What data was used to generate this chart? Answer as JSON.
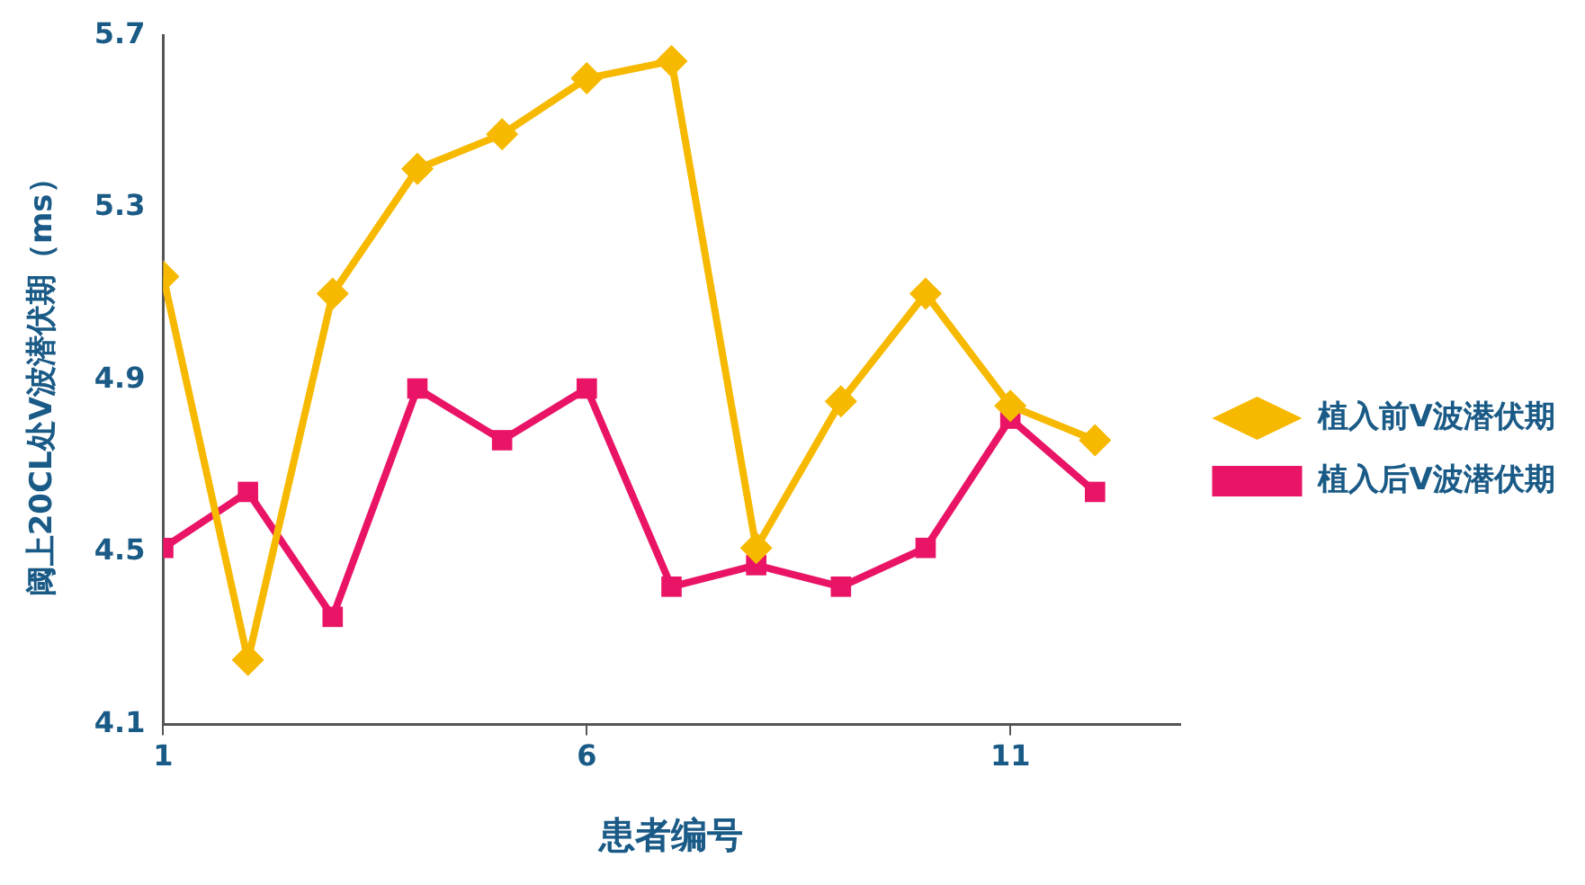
{
  "chart_data": {
    "type": "line",
    "xlabel": "患者编号",
    "ylabel": "阈上20CL处V波潜伏期（ms）",
    "x": [
      1,
      2,
      3,
      4,
      5,
      6,
      7,
      8,
      9,
      10,
      11,
      12
    ],
    "xlim": [
      1,
      13
    ],
    "xticks": [
      1,
      6,
      11
    ],
    "ylim": [
      4.1,
      5.7
    ],
    "yticks": [
      4.1,
      4.5,
      4.9,
      5.3,
      5.7
    ],
    "grid": false,
    "legend": "right",
    "line_style": "solid",
    "series": [
      {
        "name": "植入前V波潜伏期",
        "color": "#f7b900",
        "marker": "diamond",
        "values": [
          5.14,
          4.25,
          5.1,
          5.39,
          5.47,
          5.6,
          5.64,
          4.51,
          4.85,
          5.1,
          4.84,
          4.76
        ]
      },
      {
        "name": "植入后V波潜伏期",
        "color": "#ea1466",
        "marker": "square",
        "values": [
          4.51,
          4.64,
          4.35,
          4.88,
          4.76,
          4.88,
          4.42,
          4.47,
          4.42,
          4.51,
          4.81,
          4.64
        ]
      }
    ]
  }
}
